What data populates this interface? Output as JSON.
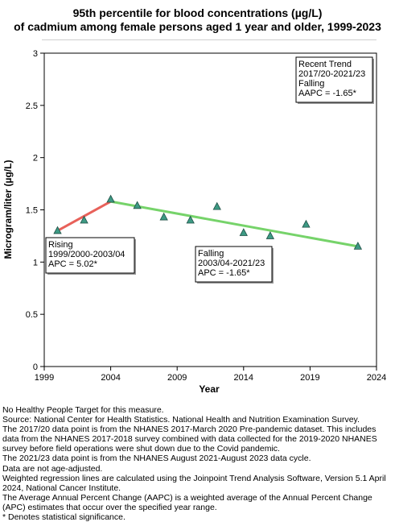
{
  "chart_data": {
    "type": "line",
    "title_line1": "95th percentile for blood concentrations (µg/L)",
    "title_line2": "of cadmium among female persons aged 1 year and older, 1999-2023",
    "xlabel": "Year",
    "ylabel": "Microgram/liter (µg/L)",
    "xlim": [
      1999,
      2024
    ],
    "ylim": [
      0,
      3
    ],
    "x_ticks": [
      1999,
      2004,
      2009,
      2014,
      2019,
      2024
    ],
    "y_ticks": [
      0,
      0.5,
      1,
      1.5,
      2,
      2.5,
      3
    ],
    "y_tick_labels": [
      "0",
      "0.5",
      "1",
      "1.5",
      "2",
      "2.5",
      "3"
    ],
    "grid": false,
    "series": [
      {
        "kind": "observed",
        "marker": "triangle",
        "x": [
          2000,
          2002,
          2004,
          2006,
          2008,
          2010,
          2012,
          2014,
          2016,
          2018.7,
          2022.6
        ],
        "values": [
          1.3,
          1.4,
          1.6,
          1.54,
          1.43,
          1.4,
          1.53,
          1.28,
          1.25,
          1.36,
          1.15
        ]
      }
    ],
    "trends": [
      {
        "x": [
          2000,
          2004
        ],
        "values": [
          1.3,
          1.58
        ],
        "color": "#e8615a"
      },
      {
        "x": [
          2004,
          2022.6
        ],
        "values": [
          1.58,
          1.15
        ],
        "color": "#76d36a"
      }
    ],
    "annotations": [
      {
        "lines": [
          "Rising",
          "1999/2000-2003/04",
          "APC =  5.02*"
        ]
      },
      {
        "lines": [
          "Falling",
          "2003/04-2021/23",
          "APC = -1.65*"
        ]
      },
      {
        "lines": [
          "Recent Trend",
          "2017/20-2021/23",
          "Falling",
          "AAPC = -1.65*"
        ]
      }
    ],
    "colors": {
      "marker_fill": "#3d9a84",
      "marker_stroke": "#1f4f45"
    }
  },
  "footnotes": [
    "No Healthy People Target for this measure.",
    "Source: National Center for Health Statistics. National Health and Nutrition Examination Survey.",
    "The 2017/20 data point is from the NHANES 2017-March 2020 Pre-pandemic dataset. This includes data from the NHANES 2017-2018 survey combined with data collected for the 2019-2020 NHANES survey before field operations were shut down due to the Covid pandemic.",
    "The 2021/23 data point is from the NHANES August 2021-August 2023 data cycle.",
    "Data are not age-adjusted.",
    "Weighted regression lines are calculated using the Joinpoint Trend Analysis Software, Version 5.1 April 2024, National Cancer Institute.",
    "The Average Annual Percent Change (AAPC) is a weighted average of the Annual Percent Change (APC) estimates that occur over the specified year range.",
    "* Denotes statistical significance."
  ]
}
